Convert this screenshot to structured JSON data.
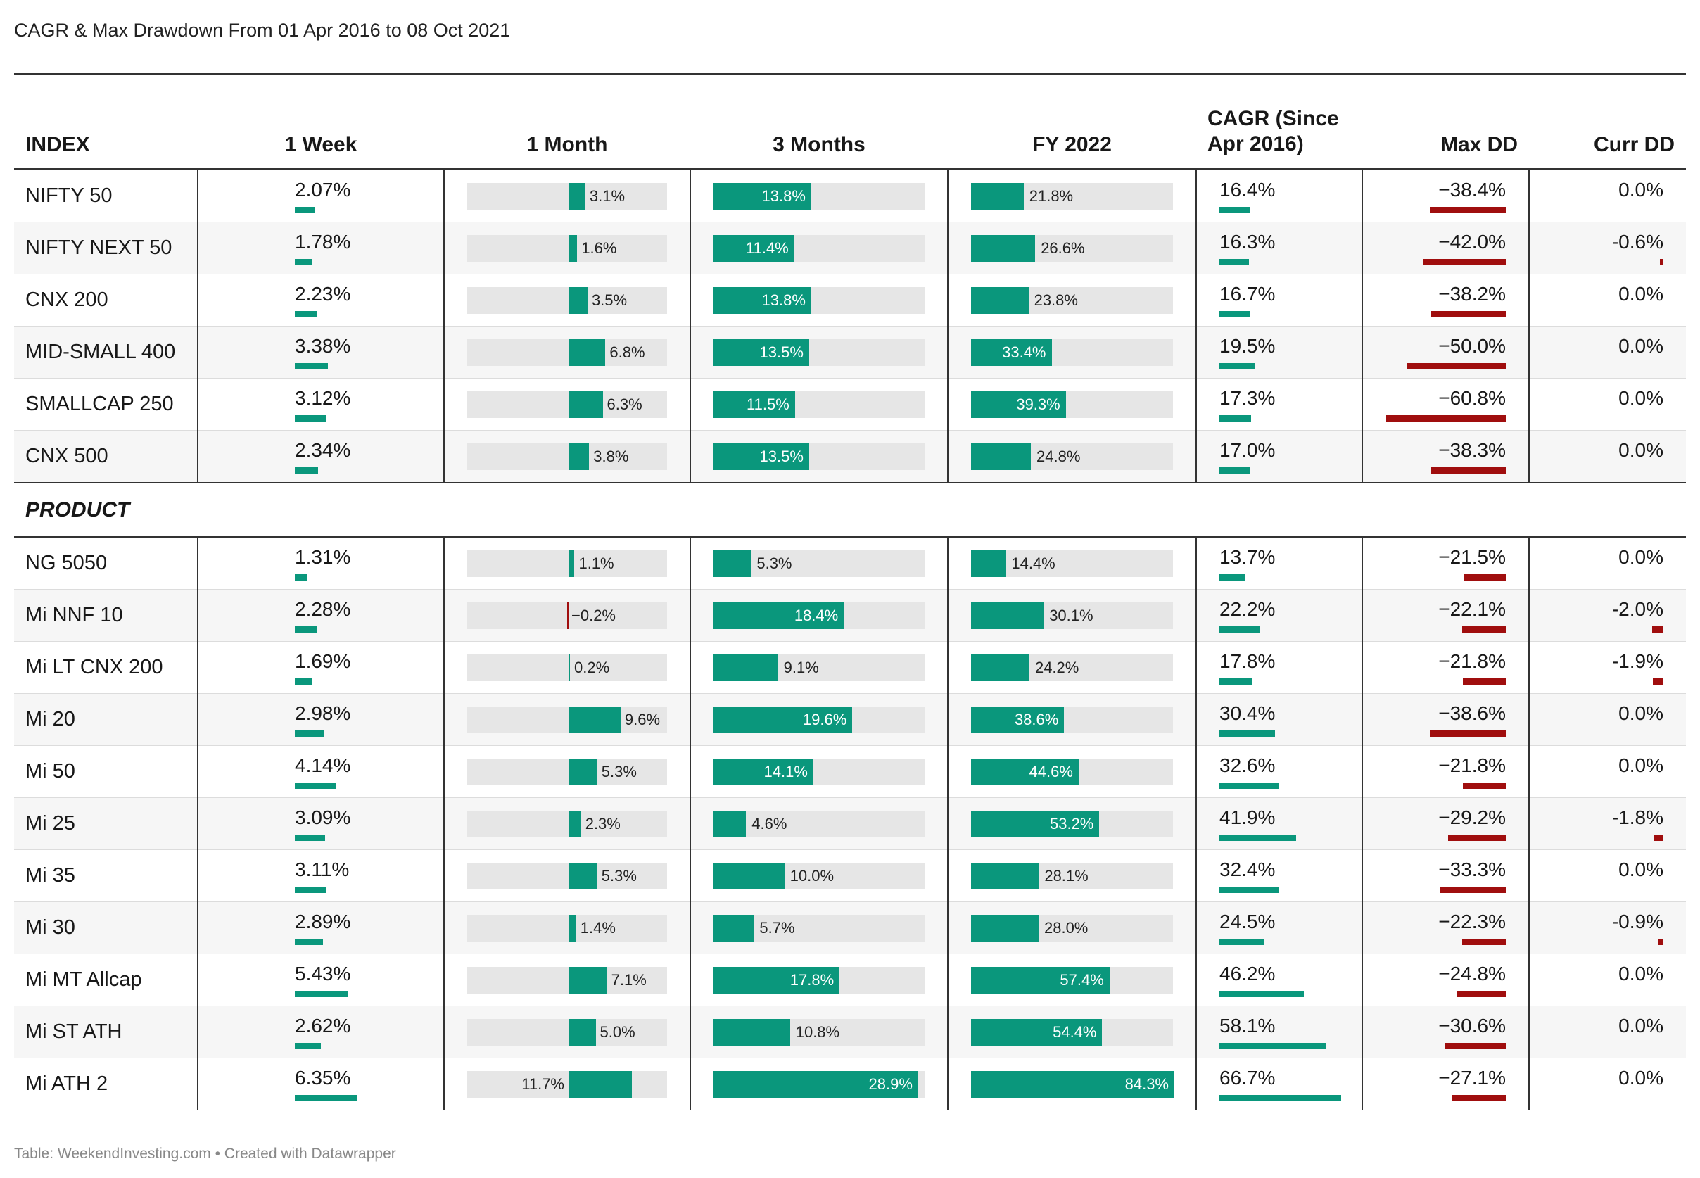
{
  "title": "CAGR & Max Drawdown From 01 Apr 2016 to 08 Oct 2021",
  "footer": "Table: WeekendInvesting.com • Created with Datawrapper",
  "colors": {
    "positive": "#0a977c",
    "negative": "#a00e0e",
    "track": "#e6e6e6",
    "rule": "#333333"
  },
  "columns": [
    "INDEX",
    "1 Week",
    "1 Month",
    "3 Months",
    "FY 2022",
    "CAGR (Since Apr 2016)",
    "Max DD",
    "Curr DD"
  ],
  "section_label": "PRODUCT",
  "chart_data": {
    "type": "table",
    "index_rows": [
      {
        "name": "NIFTY 50",
        "week": "2.07%",
        "month": "3.1%",
        "m3": "13.8%",
        "fy": "21.8%",
        "cagr": "16.4%",
        "maxdd": "−38.4%",
        "currdd": "0.0%"
      },
      {
        "name": "NIFTY NEXT 50",
        "week": "1.78%",
        "month": "1.6%",
        "m3": "11.4%",
        "fy": "26.6%",
        "cagr": "16.3%",
        "maxdd": "−42.0%",
        "currdd": "-0.6%"
      },
      {
        "name": "CNX 200",
        "week": "2.23%",
        "month": "3.5%",
        "m3": "13.8%",
        "fy": "23.8%",
        "cagr": "16.7%",
        "maxdd": "−38.2%",
        "currdd": "0.0%"
      },
      {
        "name": "MID-SMALL 400",
        "week": "3.38%",
        "month": "6.8%",
        "m3": "13.5%",
        "fy": "33.4%",
        "cagr": "19.5%",
        "maxdd": "−50.0%",
        "currdd": "0.0%"
      },
      {
        "name": "SMALLCAP 250",
        "week": "3.12%",
        "month": "6.3%",
        "m3": "11.5%",
        "fy": "39.3%",
        "cagr": "17.3%",
        "maxdd": "−60.8%",
        "currdd": "0.0%"
      },
      {
        "name": "CNX 500",
        "week": "2.34%",
        "month": "3.8%",
        "m3": "13.5%",
        "fy": "24.8%",
        "cagr": "17.0%",
        "maxdd": "−38.3%",
        "currdd": "0.0%"
      }
    ],
    "product_rows": [
      {
        "name": "NG 5050",
        "week": "1.31%",
        "month": "1.1%",
        "m3": "5.3%",
        "fy": "14.4%",
        "cagr": "13.7%",
        "maxdd": "−21.5%",
        "currdd": "0.0%"
      },
      {
        "name": "Mi NNF 10",
        "week": "2.28%",
        "month": "−0.2%",
        "m3": "18.4%",
        "fy": "30.1%",
        "cagr": "22.2%",
        "maxdd": "−22.1%",
        "currdd": "-2.0%"
      },
      {
        "name": "Mi LT CNX 200",
        "week": "1.69%",
        "month": "0.2%",
        "m3": "9.1%",
        "fy": "24.2%",
        "cagr": "17.8%",
        "maxdd": "−21.8%",
        "currdd": "-1.9%"
      },
      {
        "name": "Mi 20",
        "week": "2.98%",
        "month": "9.6%",
        "m3": "19.6%",
        "fy": "38.6%",
        "cagr": "30.4%",
        "maxdd": "−38.6%",
        "currdd": "0.0%"
      },
      {
        "name": "Mi 50",
        "week": "4.14%",
        "month": "5.3%",
        "m3": "14.1%",
        "fy": "44.6%",
        "cagr": "32.6%",
        "maxdd": "−21.8%",
        "currdd": "0.0%"
      },
      {
        "name": "Mi 25",
        "week": "3.09%",
        "month": "2.3%",
        "m3": "4.6%",
        "fy": "53.2%",
        "cagr": "41.9%",
        "maxdd": "−29.2%",
        "currdd": "-1.8%"
      },
      {
        "name": "Mi 35",
        "week": "3.11%",
        "month": "5.3%",
        "m3": "10.0%",
        "fy": "28.1%",
        "cagr": "32.4%",
        "maxdd": "−33.3%",
        "currdd": "0.0%"
      },
      {
        "name": "Mi 30",
        "week": "2.89%",
        "month": "1.4%",
        "m3": "5.7%",
        "fy": "28.0%",
        "cagr": "24.5%",
        "maxdd": "−22.3%",
        "currdd": "-0.9%"
      },
      {
        "name": "Mi MT Allcap",
        "week": "5.43%",
        "month": "7.1%",
        "m3": "17.8%",
        "fy": "57.4%",
        "cagr": "46.2%",
        "maxdd": "−24.8%",
        "currdd": "0.0%"
      },
      {
        "name": "Mi ST ATH",
        "week": "2.62%",
        "month": "5.0%",
        "m3": "10.8%",
        "fy": "54.4%",
        "cagr": "58.1%",
        "maxdd": "−30.6%",
        "currdd": "0.0%"
      },
      {
        "name": "Mi ATH 2",
        "week": "6.35%",
        "month": "11.7%",
        "m3": "28.9%",
        "fy": "84.3%",
        "cagr": "66.7%",
        "maxdd": "−27.1%",
        "currdd": "0.0%"
      }
    ]
  }
}
